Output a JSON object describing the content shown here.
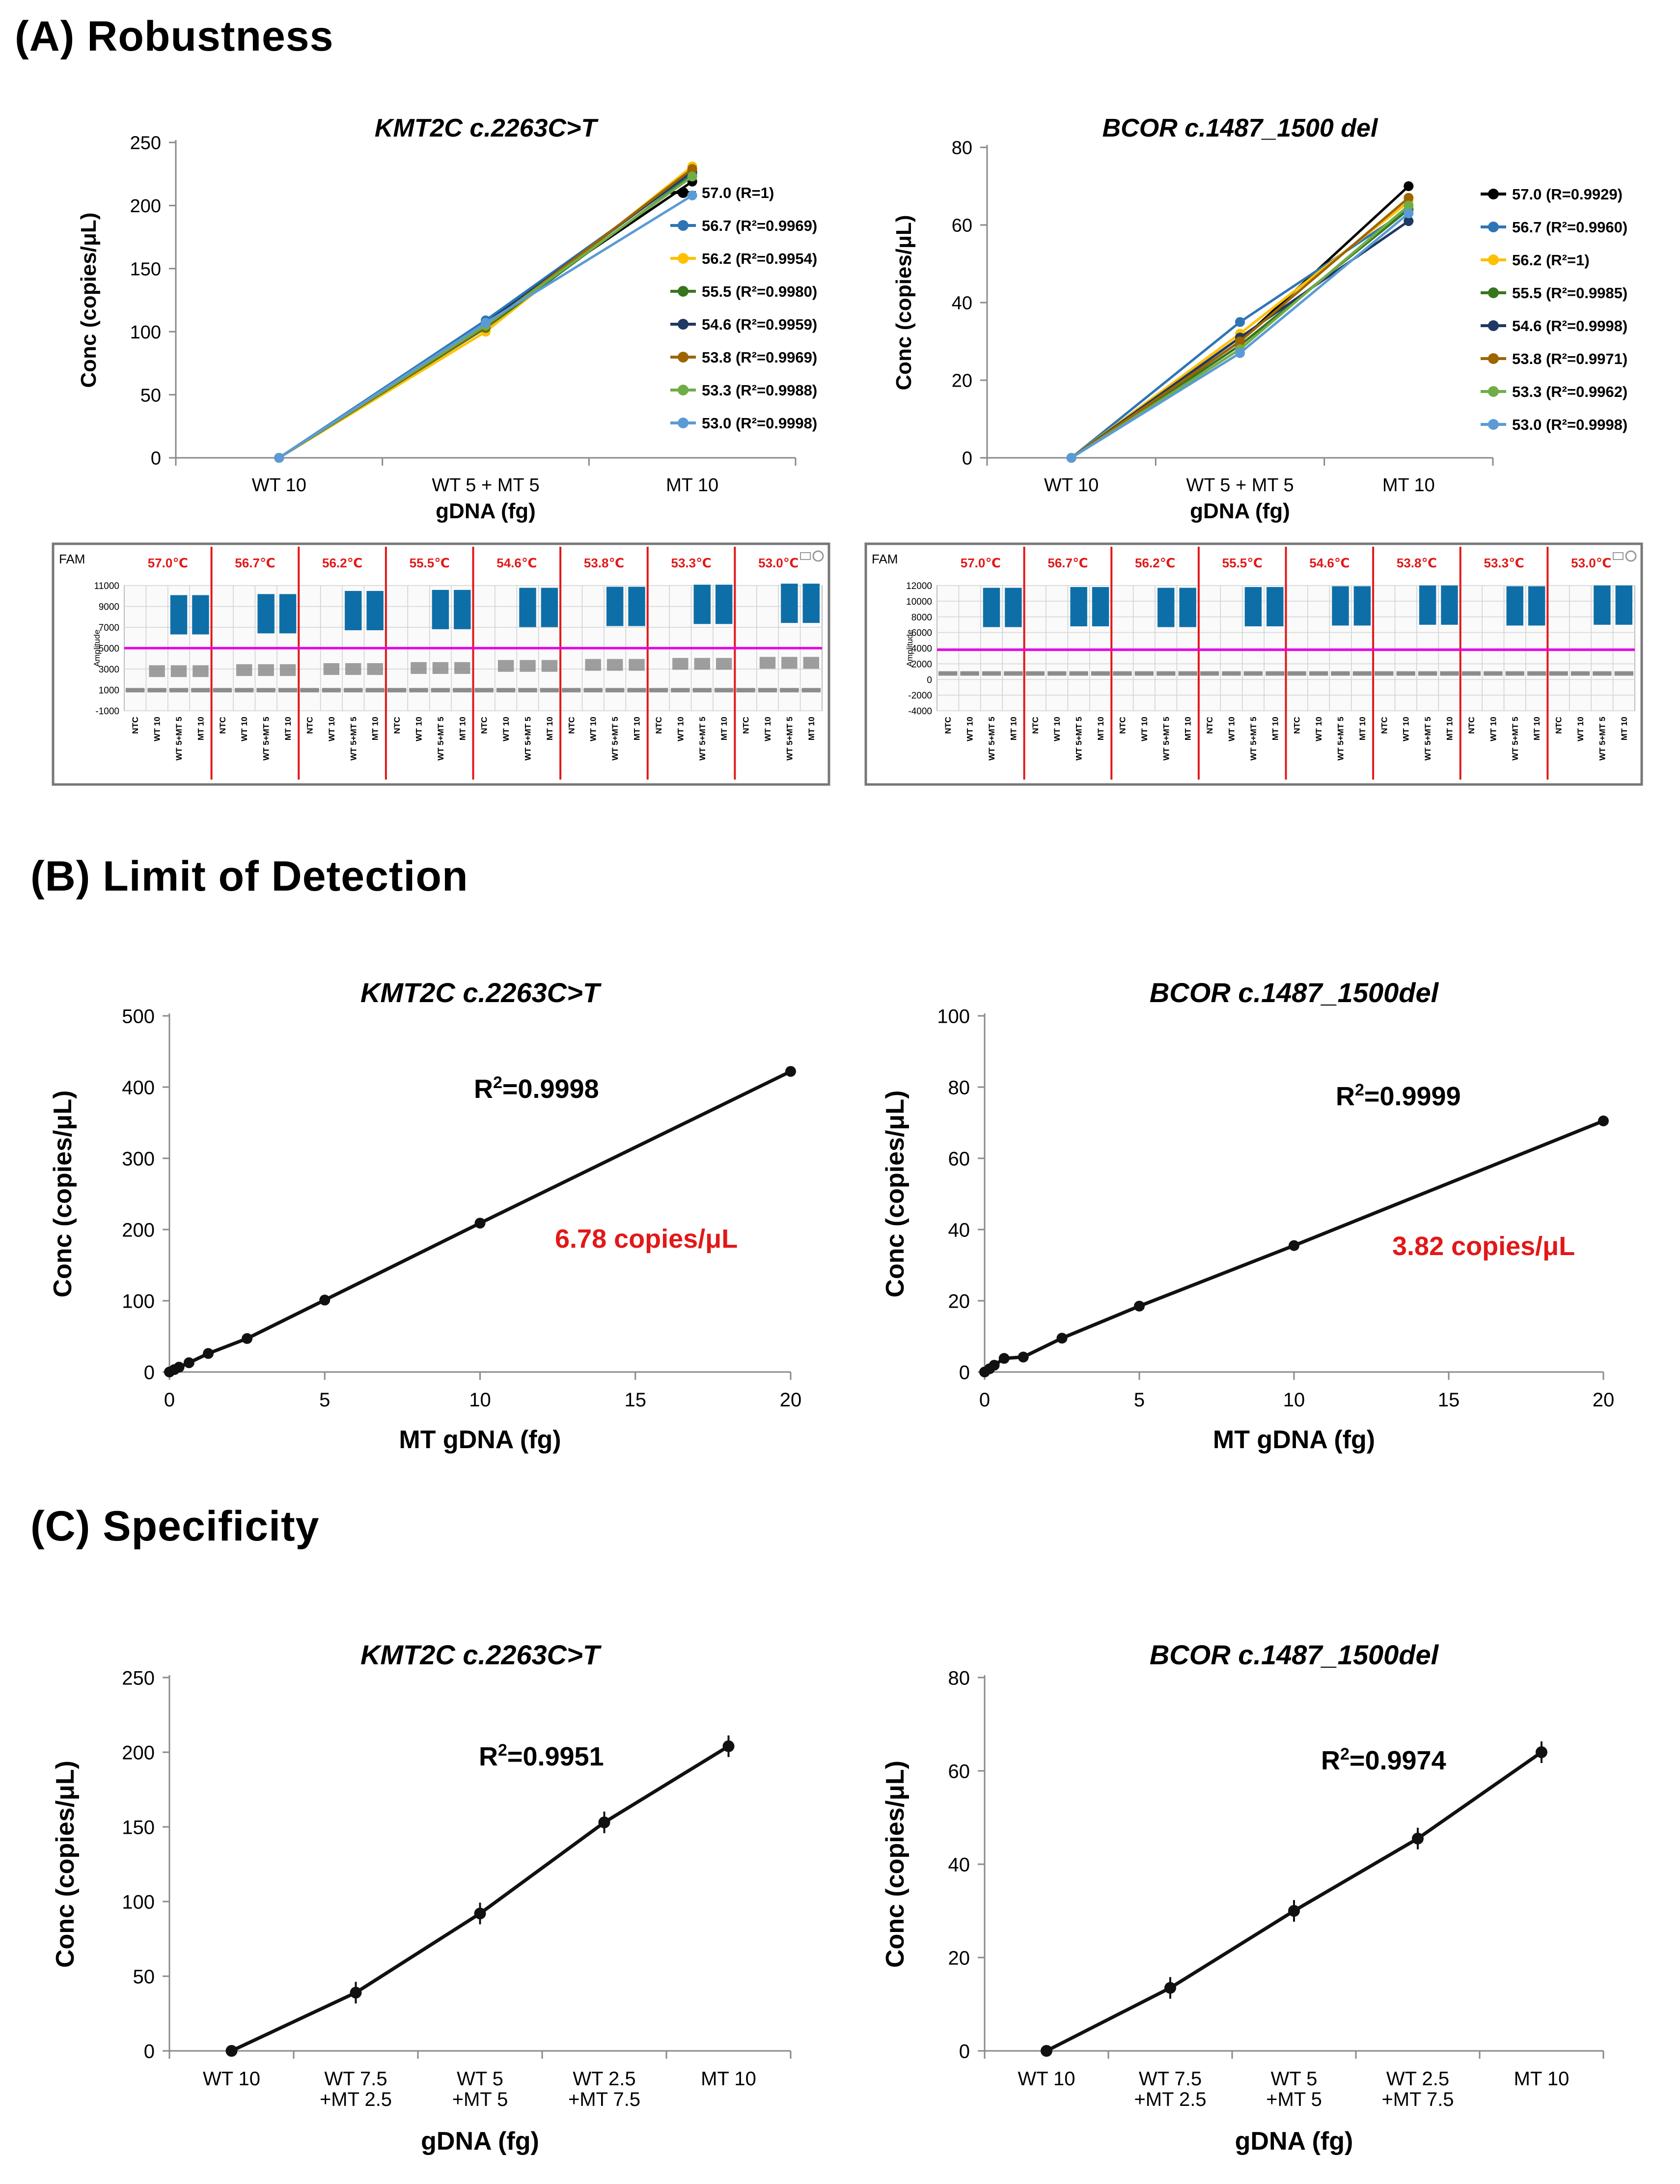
{
  "sections": {
    "a": "(A) Robustness",
    "b": "(B) Limit of Detection",
    "c": "(C) Specificity"
  },
  "colors": {
    "t57_0": "#000000",
    "t56_7": "#2e75b6",
    "t56_2": "#ffc000",
    "t55_5": "#38761d",
    "t54_6": "#1f3864",
    "t53_8": "#9c6500",
    "t53_3": "#70ad47",
    "t53_0": "#5b9bd5",
    "red": "#e21818",
    "threshold": "#e600e6",
    "positive": "#0e6fa8",
    "negative": "#8c8c8c"
  },
  "ddpcr": {
    "channel": "FAM",
    "ylabel": "Amplitude",
    "temps": [
      "57.0℃",
      "56.7℃",
      "56.2℃",
      "55.5℃",
      "54.6℃",
      "53.8℃",
      "53.3℃",
      "53.0℃"
    ],
    "wells": [
      "NTC",
      "WT 10",
      "WT 5+MT 5",
      "MT 10"
    ],
    "panels": [
      {
        "yticks": [
          11000,
          9000,
          7000,
          5000,
          3000,
          1000,
          -1000
        ],
        "ymin": -1000,
        "ymax": 11000,
        "threshold": 5000,
        "positive": [
          8200,
          8300,
          8600,
          8700,
          8900,
          9000,
          9200,
          9300
        ],
        "negative": [
          2800,
          2900,
          3000,
          3100,
          3300,
          3400,
          3500,
          3600
        ],
        "baseline": 1000
      },
      {
        "yticks": [
          12000,
          10000,
          8000,
          6000,
          4000,
          2000,
          0,
          -2000,
          -4000
        ],
        "ymin": -4000,
        "ymax": 12000,
        "threshold": 3800,
        "positive": [
          9200,
          9300,
          9200,
          9300,
          9400,
          9500,
          9400,
          9500
        ],
        "negative": [],
        "baseline": 800
      }
    ]
  },
  "chart_data": [
    {
      "type": "line",
      "panel": "A-left",
      "title": "KMT2C c.2263C>T",
      "xlabel": "gDNA (fg)",
      "ylabel": "Conc (copies/μL)",
      "categories": [
        "WT 10",
        "WT 5 + MT 5",
        "MT 10"
      ],
      "ylim": [
        0,
        250
      ],
      "yticks": [
        0,
        50,
        100,
        150,
        200,
        250
      ],
      "series": [
        {
          "name": "57.0 (R=1)",
          "color": "t57_0",
          "values": [
            0,
            108,
            219
          ]
        },
        {
          "name": "56.7 (R²=0.9969)",
          "color": "t56_7",
          "values": [
            0,
            109,
            226
          ]
        },
        {
          "name": "56.2 (R²=0.9954)",
          "color": "t56_2",
          "values": [
            0,
            100,
            231
          ]
        },
        {
          "name": "55.5 (R²=0.9980)",
          "color": "t55_5",
          "values": [
            0,
            103,
            224
          ]
        },
        {
          "name": "54.6 (R²=0.9959)",
          "color": "t54_6",
          "values": [
            0,
            106,
            227
          ]
        },
        {
          "name": "53.8 (R²=0.9969)",
          "color": "t53_8",
          "values": [
            0,
            104,
            229
          ]
        },
        {
          "name": "53.3 (R²=0.9988)",
          "color": "t53_3",
          "values": [
            0,
            105,
            223
          ]
        },
        {
          "name": "53.0 (R²=0.9998)",
          "color": "t53_0",
          "values": [
            0,
            107,
            208
          ]
        }
      ]
    },
    {
      "type": "line",
      "panel": "A-right",
      "title": "BCOR c.1487_1500 del",
      "xlabel": "gDNA (fg)",
      "ylabel": "Conc (copies/μL)",
      "categories": [
        "WT 10",
        "WT 5 + MT 5",
        "MT 10"
      ],
      "ylim": [
        0,
        80
      ],
      "yticks": [
        0,
        20,
        40,
        60,
        80
      ],
      "series": [
        {
          "name": "57.0 (R=0.9929)",
          "color": "t57_0",
          "values": [
            0,
            30,
            70
          ]
        },
        {
          "name": "56.7 (R²=0.9960)",
          "color": "t56_7",
          "values": [
            0,
            35,
            64
          ]
        },
        {
          "name": "56.2 (R²=1)",
          "color": "t56_2",
          "values": [
            0,
            32,
            66
          ]
        },
        {
          "name": "55.5 (R²=0.9985)",
          "color": "t55_5",
          "values": [
            0,
            29,
            64
          ]
        },
        {
          "name": "54.6 (R²=0.9998)",
          "color": "t54_6",
          "values": [
            0,
            31,
            61
          ]
        },
        {
          "name": "53.8 (R²=0.9971)",
          "color": "t53_8",
          "values": [
            0,
            30,
            67
          ]
        },
        {
          "name": "53.3 (R²=0.9962)",
          "color": "t53_3",
          "values": [
            0,
            28,
            65
          ]
        },
        {
          "name": "53.0 (R²=0.9998)",
          "color": "t53_0",
          "values": [
            0,
            27,
            63
          ]
        }
      ]
    },
    {
      "type": "scatter",
      "panel": "B-left",
      "title": "KMT2C c.2263C>T",
      "xlabel": "MT gDNA (fg)",
      "ylabel": "Conc (copies/μL)",
      "xlim": [
        0,
        20
      ],
      "xticks": [
        0,
        5,
        10,
        15,
        20
      ],
      "ylim": [
        0,
        500
      ],
      "yticks": [
        0,
        100,
        200,
        300,
        400,
        500
      ],
      "x": [
        0,
        0.16,
        0.31,
        0.63,
        1.25,
        2.5,
        5,
        10,
        20
      ],
      "y": [
        0,
        3.4,
        6.78,
        13,
        26,
        47,
        101,
        209,
        422
      ],
      "annotation": "R²=0.9998",
      "lod": "6.78 copies/μL"
    },
    {
      "type": "scatter",
      "panel": "B-right",
      "title": "BCOR c.1487_1500del",
      "xlabel": "MT gDNA (fg)",
      "ylabel": "Conc (copies/μL)",
      "xlim": [
        0,
        20
      ],
      "xticks": [
        0,
        5,
        10,
        15,
        20
      ],
      "ylim": [
        0,
        100
      ],
      "yticks": [
        0,
        20,
        40,
        60,
        80,
        100
      ],
      "x": [
        0,
        0.16,
        0.31,
        0.63,
        1.25,
        2.5,
        5,
        10,
        20
      ],
      "y": [
        0,
        0.9,
        1.9,
        3.82,
        4.2,
        9.5,
        18.5,
        35.5,
        70.5
      ],
      "annotation": "R²=0.9999",
      "lod": "3.82 copies/μL"
    },
    {
      "type": "line",
      "panel": "C-left",
      "title": "KMT2C c.2263C>T",
      "xlabel": "gDNA (fg)",
      "ylabel": "Conc (copies/μL)",
      "categories": [
        "WT 10",
        "WT 7.5\n+MT 2.5",
        "WT 5\n+MT 5",
        "WT 2.5\n+MT 7.5",
        "MT 10"
      ],
      "ylim": [
        0,
        250
      ],
      "yticks": [
        0,
        50,
        100,
        150,
        200,
        250
      ],
      "values": [
        0,
        39,
        92,
        153,
        204
      ],
      "annotation": "R²=0.9951"
    },
    {
      "type": "line",
      "panel": "C-right",
      "title": "BCOR c.1487_1500del",
      "xlabel": "gDNA (fg)",
      "ylabel": "Conc (copies/μL)",
      "categories": [
        "WT 10",
        "WT 7.5\n+MT 2.5",
        "WT 5\n+MT 5",
        "WT 2.5\n+MT 7.5",
        "MT 10"
      ],
      "ylim": [
        0,
        80
      ],
      "yticks": [
        0,
        20,
        40,
        60,
        80
      ],
      "values": [
        0,
        13.5,
        30,
        45.5,
        64
      ],
      "annotation": "R²=0.9974"
    }
  ]
}
